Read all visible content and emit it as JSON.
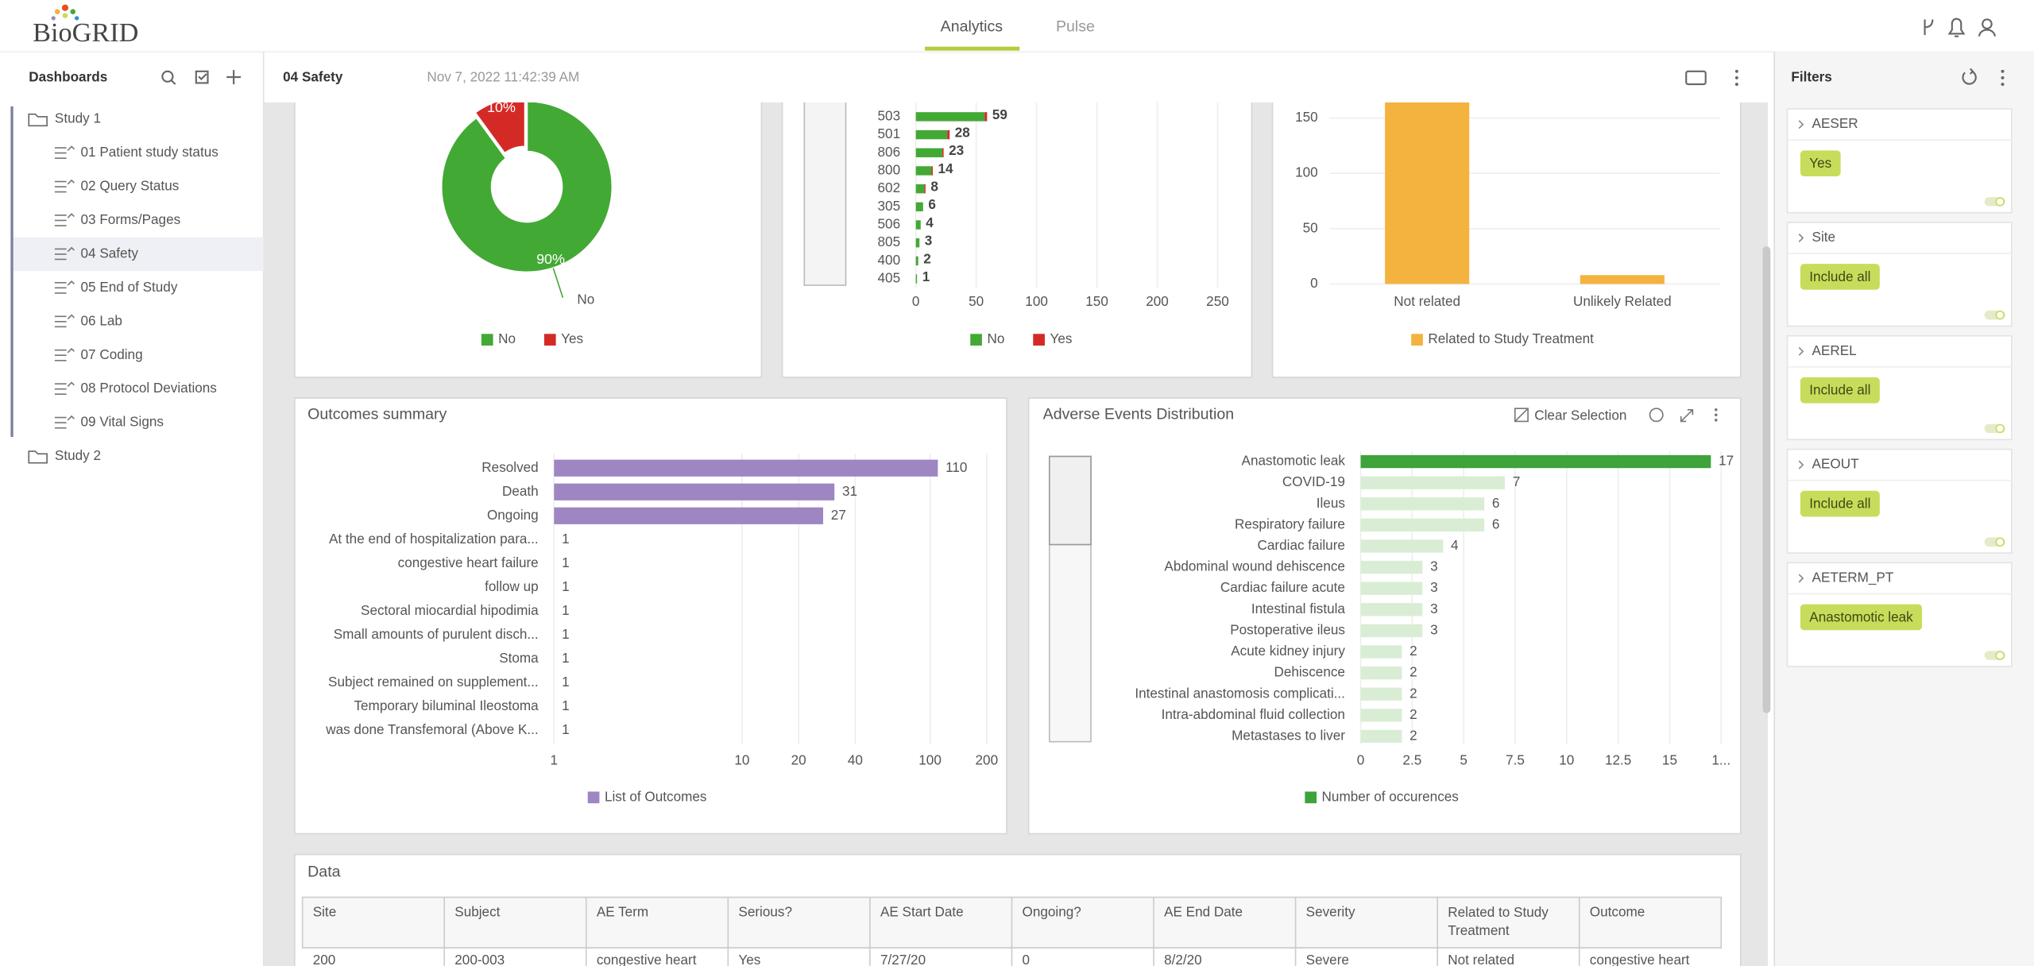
{
  "header": {
    "logo": "BioGRID",
    "tabs": [
      "Analytics",
      "Pulse"
    ]
  },
  "sidebar": {
    "title": "Dashboards",
    "studies": [
      {
        "name": "Study 1",
        "items": [
          "01 Patient study status",
          "02 Query Status",
          "03 Forms/Pages",
          "04 Safety",
          "05 End of Study",
          "06 Lab",
          "07 Coding",
          "08 Protocol Deviations",
          "09 Vital Signs"
        ]
      },
      {
        "name": "Study 2",
        "items": []
      }
    ]
  },
  "toolbar": {
    "title": "04 Safety",
    "timestamp": "Nov 7, 2022 11:42:39 AM"
  },
  "filters": {
    "title": "Filters",
    "items": [
      {
        "name": "AESER",
        "value": "Yes"
      },
      {
        "name": "Site",
        "value": "Include all"
      },
      {
        "name": "AEREL",
        "value": "Include all"
      },
      {
        "name": "AEOUT",
        "value": "Include all"
      },
      {
        "name": "AETERM_PT",
        "value": "Anastomotic leak"
      }
    ]
  },
  "chart_data": [
    {
      "type": "pie",
      "donut": true,
      "categories": [
        "No",
        "Yes"
      ],
      "values": [
        90,
        10
      ],
      "value_labels": [
        "90%",
        "10%"
      ],
      "colors": [
        "#43a935",
        "#d42a26"
      ],
      "legend": "bottom"
    },
    {
      "type": "bar",
      "orientation": "horizontal",
      "stacked": true,
      "categories": [
        "503",
        "501",
        "806",
        "800",
        "602",
        "305",
        "506",
        "805",
        "400",
        "405"
      ],
      "series": [
        {
          "name": "No",
          "color": "#43a935",
          "values": [
            57,
            26,
            22,
            13,
            7,
            6,
            4,
            3,
            2,
            1
          ]
        },
        {
          "name": "Yes",
          "color": "#d42a26",
          "values": [
            2,
            2,
            1,
            1,
            1,
            0,
            0,
            0,
            0,
            0
          ]
        }
      ],
      "value_labels": [
        59,
        28,
        23,
        14,
        8,
        6,
        4,
        3,
        2,
        1
      ],
      "xlim": [
        0,
        260
      ],
      "xticks": [
        0,
        50,
        100,
        150,
        200,
        250
      ],
      "grid": true,
      "legend": "bottom"
    },
    {
      "type": "bar",
      "orientation": "vertical",
      "categories": [
        "Not related",
        "Unlikely Related"
      ],
      "series": [
        {
          "name": "Related to Study Treatment",
          "color": "#f4b23e",
          "values": [
            170,
            8
          ]
        }
      ],
      "ylim": [
        0,
        160
      ],
      "yticks": [
        0,
        50,
        100,
        150
      ],
      "grid": true,
      "legend": "bottom"
    },
    {
      "type": "bar",
      "orientation": "horizontal",
      "title": "Outcomes summary",
      "categories": [
        "Resolved",
        "Death",
        "Ongoing",
        "At the end of hospitalization para...",
        "congestive heart failure",
        "follow up",
        "Sectoral miocardial hipodimia",
        "Small amounts of purulent disch...",
        "Stoma",
        "Subject remained on supplement...",
        "Temporary biluminal Ileostoma",
        "was done Transfemoral (Above K..."
      ],
      "series": [
        {
          "name": "List of Outcomes",
          "color": "#9d86c2",
          "values": [
            110,
            31,
            27,
            1,
            1,
            1,
            1,
            1,
            1,
            1,
            1,
            1
          ]
        }
      ],
      "xlim": [
        1,
        200
      ],
      "xscale": "log",
      "xticks": [
        1,
        10,
        20,
        40,
        100,
        200
      ],
      "grid": true,
      "show_values": true,
      "legend": "bottom"
    },
    {
      "type": "bar",
      "orientation": "horizontal",
      "title": "Adverse Events Distribution",
      "action": "Clear Selection",
      "categories": [
        "Anastomotic leak",
        "COVID-19",
        "Ileus",
        "Respiratory failure",
        "Cardiac failure",
        "Abdominal wound dehiscence",
        "Cardiac failure acute",
        "Intestinal fistula",
        "Postoperative ileus",
        "Acute kidney injury",
        "Dehiscence",
        "Intestinal anastomosis complicati...",
        "Intra-abdominal fluid collection",
        "Metastases to liver"
      ],
      "series": [
        {
          "name": "Number of occurences",
          "color": "#3da33a",
          "values": [
            17,
            7,
            6,
            6,
            4,
            3,
            3,
            3,
            3,
            2,
            2,
            2,
            2,
            2
          ]
        }
      ],
      "colors": [
        "#3da33a",
        "#d9edd5",
        "#d9edd5",
        "#d9edd5",
        "#d9edd5",
        "#d9edd5",
        "#d9edd5",
        "#d9edd5",
        "#d9edd5",
        "#d9edd5",
        "#d9edd5",
        "#d9edd5",
        "#d9edd5",
        "#d9edd5"
      ],
      "xlim": [
        0,
        17.5
      ],
      "xticks": [
        0,
        2.5,
        5,
        7.5,
        10,
        12.5,
        15,
        {
          "value": 17.5,
          "label": "1..."
        }
      ],
      "grid": true,
      "show_values": true,
      "legend": "bottom"
    }
  ],
  "table": {
    "title": "Data",
    "columns": [
      "Site",
      "Subject",
      "AE Term",
      "Serious?",
      "AE Start Date",
      "Ongoing?",
      "AE End Date",
      "Severity",
      "Related to Study Treatment",
      "Outcome"
    ],
    "rows": [
      [
        "200",
        "200-003",
        "congestive heart",
        "Yes",
        "7/27/20",
        "0",
        "8/2/20",
        "Severe",
        "Not related",
        "congestive heart"
      ]
    ]
  }
}
